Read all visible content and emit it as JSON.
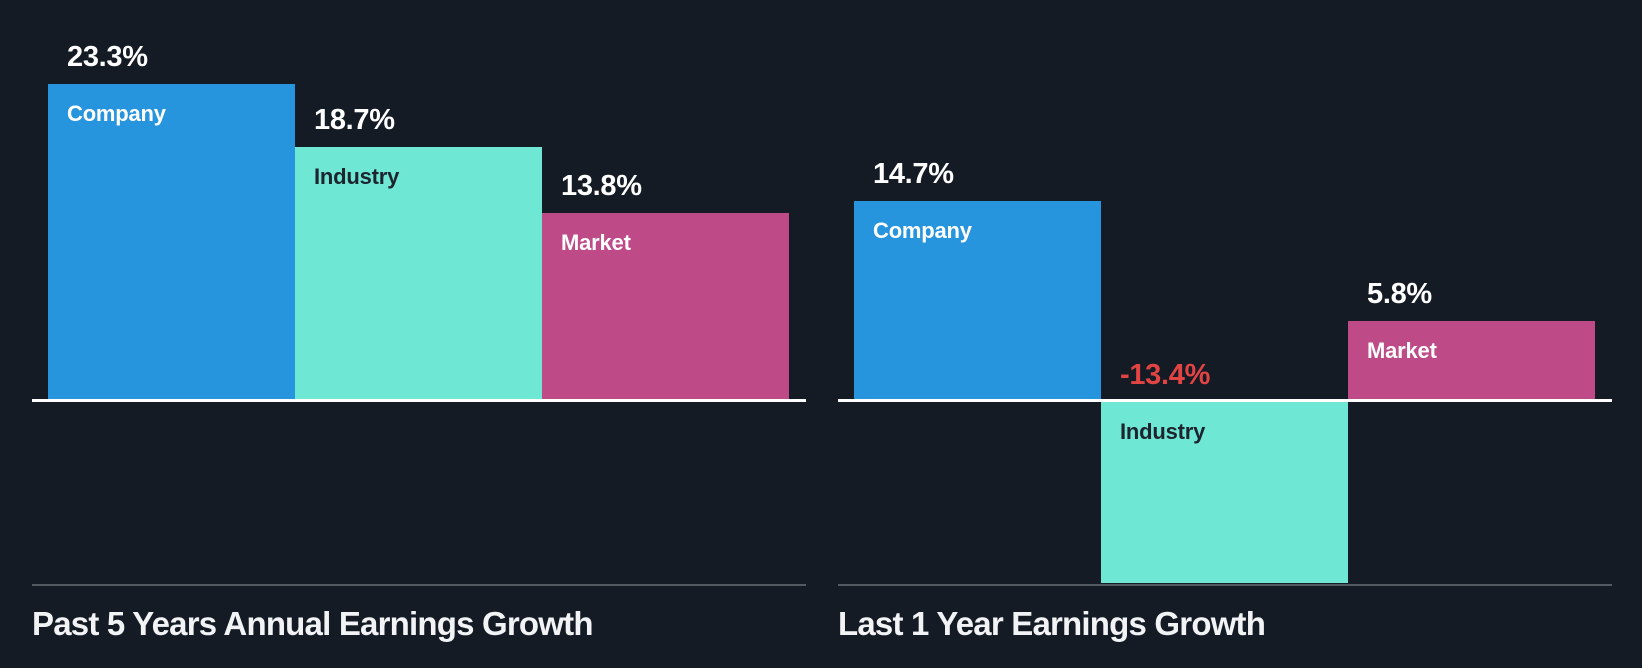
{
  "page": {
    "background": "#151B24",
    "axis_color": "#FFFFFF",
    "separator_color": "#545A62",
    "title_color": "#F2F3F5"
  },
  "palette": {
    "company_blue": "#2794DE",
    "industry_teal": "#6FE7D5",
    "market_magenta": "#BE4B87",
    "negative_red": "#E24343",
    "label_light": "#FFFFFF",
    "label_dark": "#1D242E"
  },
  "chart_data": [
    {
      "type": "bar",
      "title": "Past 5 Years Annual Earnings Growth",
      "categories": [
        "Company",
        "Industry",
        "Market"
      ],
      "values": [
        23.3,
        18.7,
        13.8
      ],
      "value_labels": [
        "23.3%",
        "18.7%",
        "13.8%"
      ],
      "unit": "%",
      "baseline": 0,
      "ylim": [
        0,
        26
      ],
      "grid": false,
      "legend": "none",
      "bar_colors": [
        "#2794DE",
        "#6FE7D5",
        "#BE4B87"
      ],
      "category_label_colors": [
        "#FFFFFF",
        "#1D242E",
        "#FFFFFF"
      ],
      "value_label_colors": [
        "#FFFFFF",
        "#FFFFFF",
        "#FFFFFF"
      ]
    },
    {
      "type": "bar",
      "title": "Last 1 Year Earnings Growth",
      "categories": [
        "Company",
        "Industry",
        "Market"
      ],
      "values": [
        14.7,
        -13.4,
        5.8
      ],
      "value_labels": [
        "14.7%",
        "-13.4%",
        "5.8%"
      ],
      "unit": "%",
      "baseline": 0,
      "ylim": [
        -14,
        26
      ],
      "grid": false,
      "legend": "none",
      "bar_colors": [
        "#2794DE",
        "#6FE7D5",
        "#BE4B87"
      ],
      "category_label_colors": [
        "#FFFFFF",
        "#1D242E",
        "#FFFFFF"
      ],
      "value_label_colors": [
        "#FFFFFF",
        "#E24343",
        "#FFFFFF"
      ]
    }
  ]
}
